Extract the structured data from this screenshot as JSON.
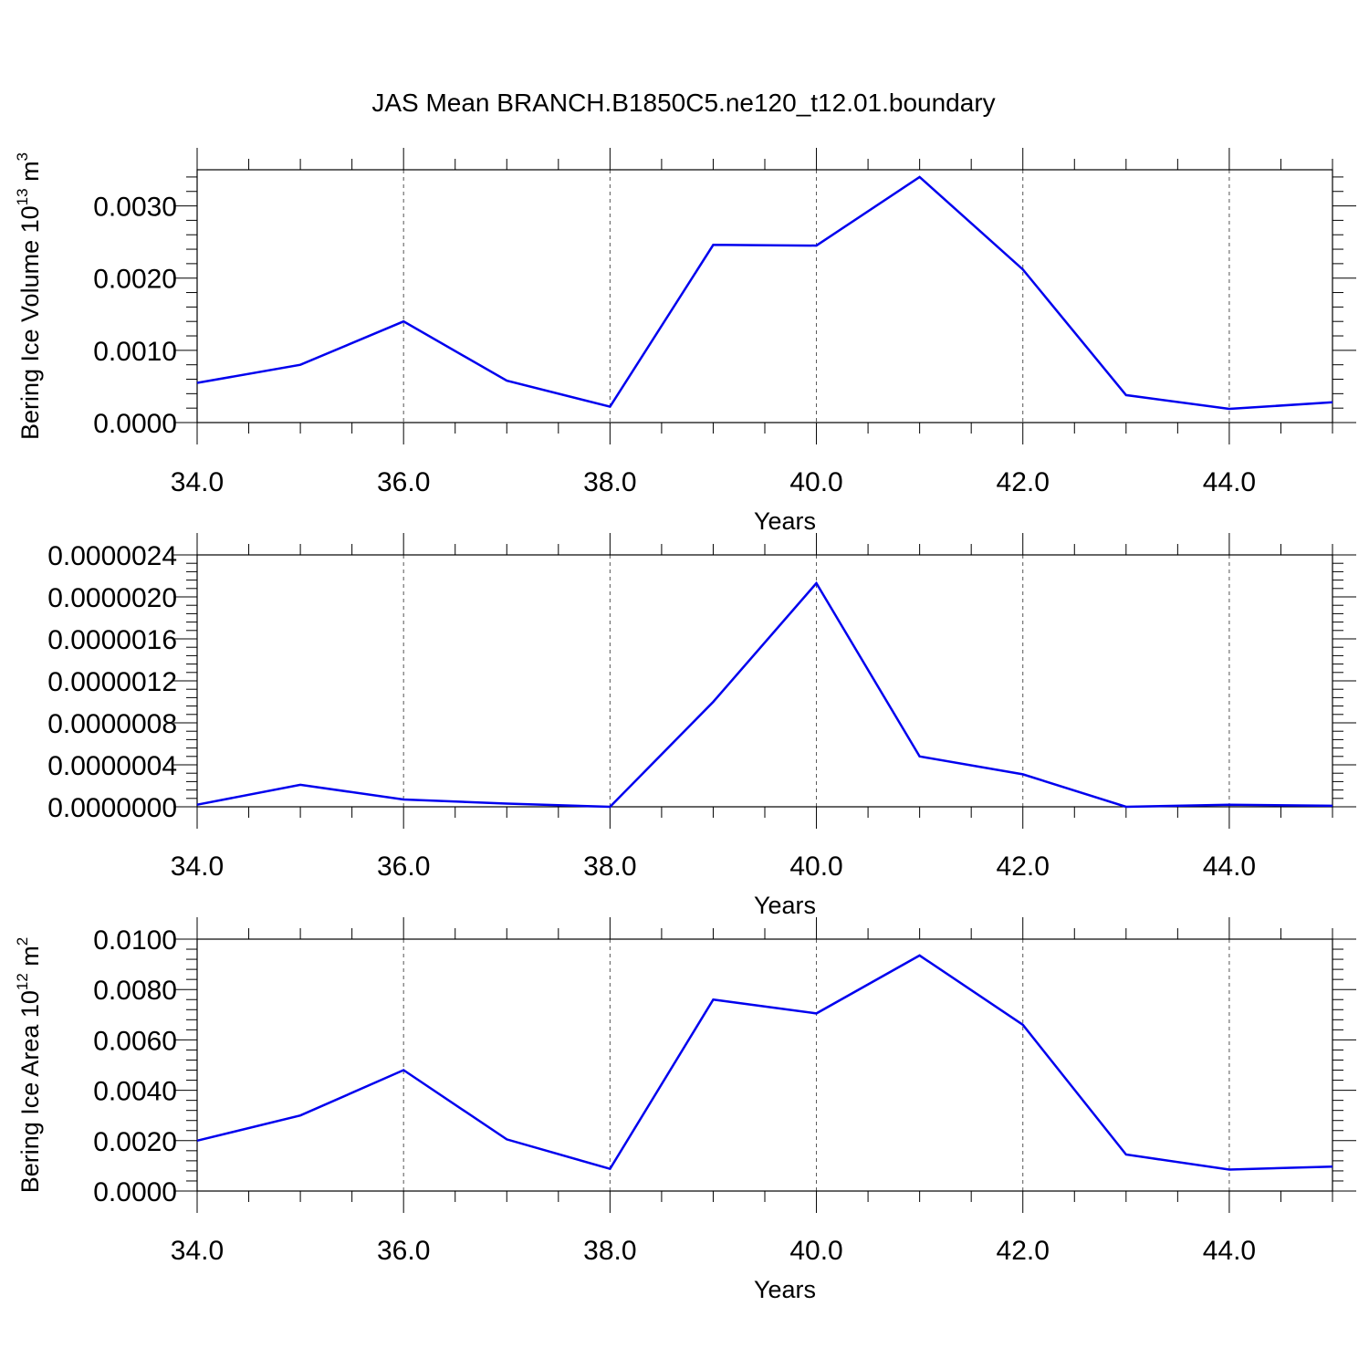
{
  "title": "JAS Mean BRANCH.B1850C5.ne120_t12.01.boundary",
  "line_color": "#0000ee",
  "chart_data": [
    {
      "type": "line",
      "ylabel": "Bering Ice Volume 10",
      "ylabel_exp": "13",
      "ylabel_unit": "m",
      "ylabel_unit_exp": "3",
      "xlabel": "Years",
      "xlim": [
        34,
        45
      ],
      "ylim": [
        0,
        0.0035
      ],
      "x_ticks": [
        34,
        36,
        38,
        40,
        42,
        44
      ],
      "x_tick_labels": [
        "34.0",
        "36.0",
        "38.0",
        "40.0",
        "42.0",
        "44.0"
      ],
      "y_ticks": [
        0,
        0.001,
        0.002,
        0.003
      ],
      "y_tick_labels": [
        "0.0000",
        "0.0010",
        "0.0020",
        "0.0030"
      ],
      "grid_x": true,
      "series": [
        {
          "x": [
            34,
            35,
            36,
            37,
            38,
            39,
            40,
            41,
            42,
            43,
            44,
            45
          ],
          "values": [
            0.00055,
            0.0008,
            0.0014,
            0.00058,
            0.00022,
            0.00246,
            0.00245,
            0.0034,
            0.00212,
            0.00038,
            0.00019,
            0.00028
          ]
        }
      ]
    },
    {
      "type": "line",
      "ylabel": "",
      "xlabel": "Years",
      "xlim": [
        34,
        45
      ],
      "ylim": [
        0,
        2.4e-06
      ],
      "x_ticks": [
        34,
        36,
        38,
        40,
        42,
        44
      ],
      "x_tick_labels": [
        "34.0",
        "36.0",
        "38.0",
        "40.0",
        "42.0",
        "44.0"
      ],
      "y_ticks": [
        0,
        4e-07,
        8e-07,
        1.2e-06,
        1.6e-06,
        2e-06,
        2.4e-06
      ],
      "y_tick_labels": [
        "0.0000000",
        "0.0000004",
        "0.0000008",
        "0.0000012",
        "0.0000016",
        "0.0000020",
        "0.0000024"
      ],
      "grid_x": true,
      "series": [
        {
          "x": [
            34,
            35,
            36,
            37,
            38,
            39,
            40,
            41,
            42,
            43,
            44,
            45
          ],
          "values": [
            2e-08,
            2.1e-07,
            7e-08,
            3e-08,
            0.0,
            1e-06,
            2.13e-06,
            4.8e-07,
            3.1e-07,
            0.0,
            2e-08,
            1e-08
          ]
        }
      ]
    },
    {
      "type": "line",
      "ylabel": "Bering Ice Area 10",
      "ylabel_exp": "12",
      "ylabel_unit": "m",
      "ylabel_unit_exp": "2",
      "xlabel": "Years",
      "xlim": [
        34,
        45
      ],
      "ylim": [
        0,
        0.01
      ],
      "x_ticks": [
        34,
        36,
        38,
        40,
        42,
        44
      ],
      "x_tick_labels": [
        "34.0",
        "36.0",
        "38.0",
        "40.0",
        "42.0",
        "44.0"
      ],
      "y_ticks": [
        0,
        0.002,
        0.004,
        0.006,
        0.008,
        0.01
      ],
      "y_tick_labels": [
        "0.0000",
        "0.0020",
        "0.0040",
        "0.0060",
        "0.0080",
        "0.0100"
      ],
      "grid_x": true,
      "series": [
        {
          "x": [
            34,
            35,
            36,
            37,
            38,
            39,
            40,
            41,
            42,
            43,
            44,
            45
          ],
          "values": [
            0.002,
            0.003,
            0.0048,
            0.00205,
            0.00088,
            0.0076,
            0.00705,
            0.00935,
            0.0066,
            0.00145,
            0.00085,
            0.00097
          ]
        }
      ]
    }
  ]
}
